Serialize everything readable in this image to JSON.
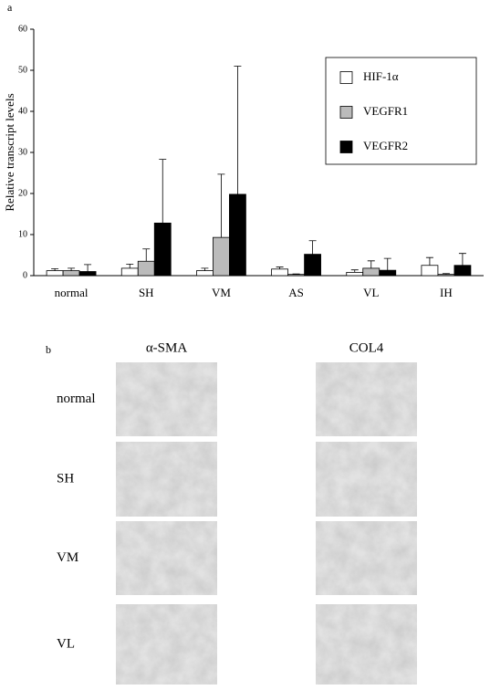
{
  "figure_label_a": "a",
  "chart_data": {
    "type": "bar",
    "y_label": "Relative transcript levels",
    "categories": [
      "normal",
      "SH",
      "VM",
      "AS",
      "VL",
      "IH"
    ],
    "series": [
      {
        "name": "HIF-1α",
        "color": "#ffffff",
        "values": [
          1.2,
          1.8,
          1.2,
          1.6,
          0.8,
          2.5
        ],
        "errors": [
          0.5,
          1.0,
          0.6,
          0.5,
          0.6,
          1.9
        ]
      },
      {
        "name": "VEGFR1",
        "color": "#bbbbbb",
        "values": [
          1.2,
          3.5,
          9.3,
          0.3,
          1.8,
          0.3
        ],
        "errors": [
          0.6,
          3.0,
          15.4,
          0.1,
          1.8,
          0.2
        ]
      },
      {
        "name": "VEGFR2",
        "color": "#000000",
        "values": [
          1.0,
          12.8,
          19.8,
          5.2,
          1.3,
          2.5
        ],
        "errors": [
          1.7,
          15.5,
          31.2,
          3.3,
          2.9,
          2.9
        ]
      }
    ],
    "ylim": [
      0,
      60
    ],
    "yticks": [
      0,
      10,
      20,
      30,
      40,
      50,
      60
    ],
    "legend": "upper right"
  },
  "panel_b": {
    "label": "b",
    "columns": [
      "α-SMA",
      "COL4"
    ],
    "rows": [
      "normal",
      "SH",
      "VM",
      "VL"
    ]
  }
}
